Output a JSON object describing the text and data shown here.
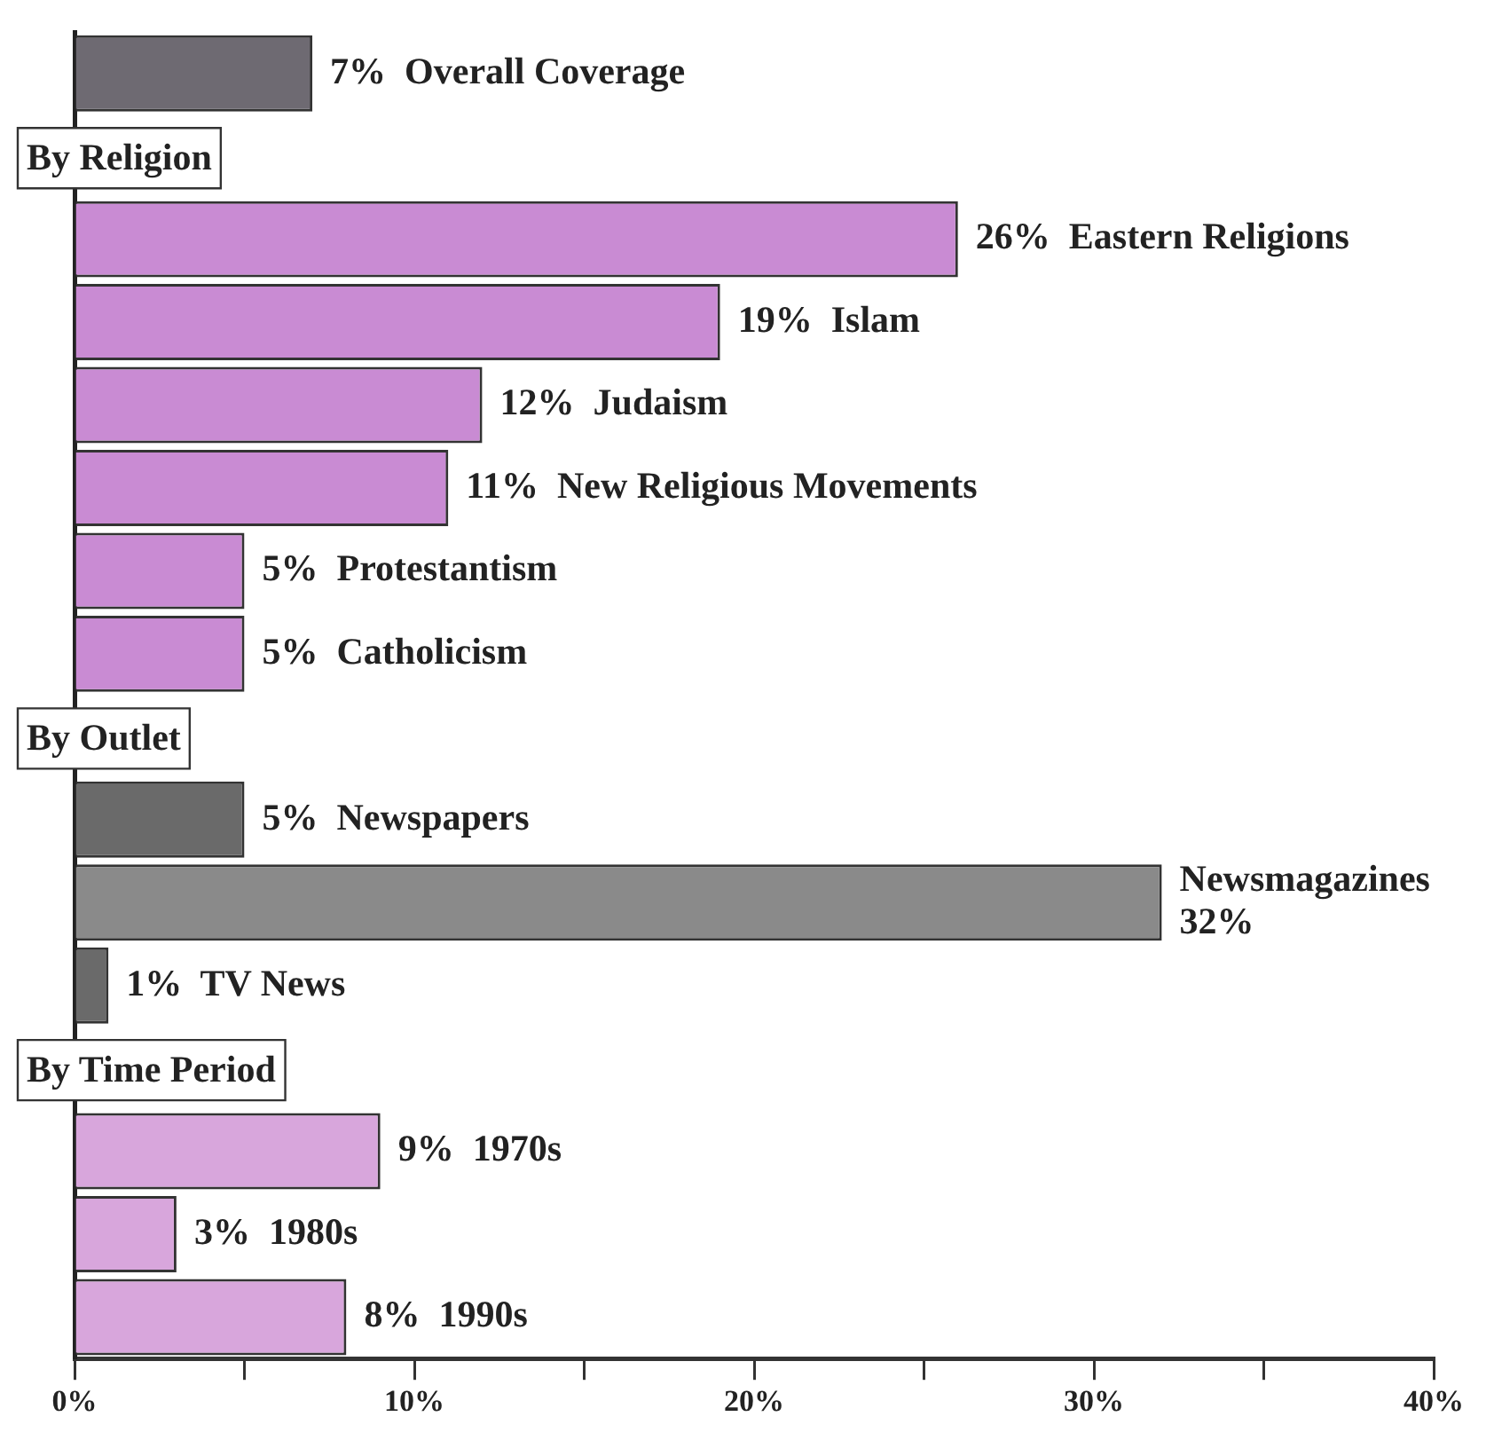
{
  "chart_data": {
    "type": "bar",
    "orientation": "horizontal",
    "categories": [
      "Overall Coverage",
      null,
      "Eastern Religions",
      "Islam",
      "Judaism",
      "New Religious Movements",
      "Protestantism",
      "Catholicism",
      null,
      "Newspapers",
      "Newsmagazines",
      "TV News",
      null,
      "1970s",
      "1980s",
      "1990s"
    ],
    "values": [
      7,
      null,
      26,
      19,
      12,
      11,
      5,
      5,
      null,
      5,
      32,
      1,
      null,
      9,
      3,
      8
    ],
    "value_labels": [
      "7%",
      null,
      "26%",
      "19%",
      "12%",
      "11%",
      "5%",
      "5%",
      null,
      "5%",
      "32%",
      "1%",
      null,
      "9%",
      "3%",
      "8%"
    ],
    "colors": [
      "#6e6a72",
      "#ffffff",
      "#c98bd3",
      "#c98bd3",
      "#c98bd3",
      "#c98bd3",
      "#c98bd3",
      "#c98bd3",
      "#ffffff",
      "#6a6a6a",
      "#8a8a8a",
      "#6a6a6a",
      "#ffffff",
      "#d8a6dc",
      "#d8a6dc",
      "#d8a6dc"
    ],
    "annotations": [
      "By Religion",
      "By Outlet",
      "By Time Period"
    ],
    "xlim": [
      0,
      40
    ],
    "xticks": [
      {
        "value": 0,
        "label": "0%"
      },
      {
        "value": 5,
        "label": null
      },
      {
        "value": 10,
        "label": "10%"
      },
      {
        "value": 15,
        "label": null
      },
      {
        "value": 20,
        "label": "20%"
      },
      {
        "value": 25,
        "label": null
      },
      {
        "value": 30,
        "label": "30%"
      },
      {
        "value": 35,
        "label": null
      },
      {
        "value": 40,
        "label": "40%"
      }
    ],
    "grid": false,
    "tick_labels": "x"
  }
}
